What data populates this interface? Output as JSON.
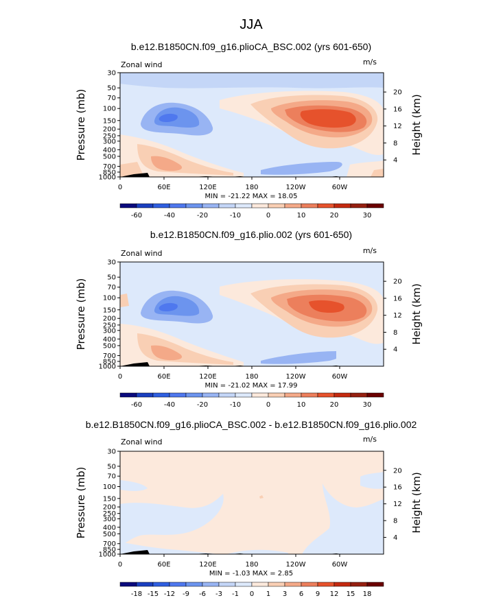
{
  "figure_title": "JJA",
  "colors": {
    "diverging_palette": [
      "#0a0a7d",
      "#1a3fbf",
      "#2f5fe0",
      "#4f78ee",
      "#6c94ee",
      "#98b4f3",
      "#c4d6f7",
      "#dde9fb",
      "#fce9dc",
      "#f9cfb4",
      "#f4a988",
      "#ec7f5c",
      "#e6522c",
      "#c42a10",
      "#952010",
      "#6b0000"
    ],
    "land": "#000000"
  },
  "chart_data": [
    {
      "type": "heatmap",
      "title": "b.e12.B1850CN.f09_g16.plioCA_BSC.002 (yrs 601-650)",
      "field_label": "Zonal wind",
      "units": "m/s",
      "ylabel": "Pressure (mb)",
      "ylabel_right": "Height (km)",
      "x_ticks": [
        "0",
        "60E",
        "120E",
        "180",
        "120W",
        "60W"
      ],
      "x_range": [
        0,
        360
      ],
      "y_ticks": [
        "30",
        "50",
        "70",
        "100",
        "150",
        "200",
        "250",
        "300",
        "400",
        "500",
        "700",
        "850",
        "1000"
      ],
      "y_range_mb": [
        1000,
        30
      ],
      "height_ticks": [
        "20",
        "16",
        "12",
        "8",
        "4"
      ],
      "min_max_text": "MIN = -21.22   MAX =  18.05",
      "min": -21.22,
      "max": 18.05,
      "colorbar_labels": [
        "-60",
        "-40",
        "-20",
        "-10",
        "0",
        "10",
        "20",
        "30"
      ],
      "level_step": 5
    },
    {
      "type": "heatmap",
      "title": "b.e12.B1850CN.f09_g16.plio.002 (yrs 601-650)",
      "field_label": "Zonal wind",
      "units": "m/s",
      "ylabel": "Pressure (mb)",
      "ylabel_right": "Height (km)",
      "x_ticks": [
        "0",
        "60E",
        "120E",
        "180",
        "120W",
        "60W"
      ],
      "x_range": [
        0,
        360
      ],
      "y_ticks": [
        "30",
        "50",
        "70",
        "100",
        "150",
        "200",
        "250",
        "300",
        "400",
        "500",
        "700",
        "850",
        "1000"
      ],
      "y_range_mb": [
        1000,
        30
      ],
      "height_ticks": [
        "20",
        "16",
        "12",
        "8",
        "4"
      ],
      "min_max_text": "MIN = -21.02   MAX =  17.99",
      "min": -21.02,
      "max": 17.99,
      "colorbar_labels": [
        "-60",
        "-40",
        "-20",
        "-10",
        "0",
        "10",
        "20",
        "30"
      ],
      "level_step": 5
    },
    {
      "type": "heatmap",
      "title": "b.e12.B1850CN.f09_g16.plioCA_BSC.002 - b.e12.B1850CN.f09_g16.plio.002",
      "field_label": "Zonal wind",
      "units": "m/s",
      "ylabel": "Pressure (mb)",
      "ylabel_right": "Height (km)",
      "x_ticks": [
        "0",
        "60E",
        "120E",
        "180",
        "120W",
        "60W"
      ],
      "x_range": [
        0,
        360
      ],
      "y_ticks": [
        "30",
        "50",
        "70",
        "100",
        "150",
        "200",
        "250",
        "300",
        "400",
        "500",
        "700",
        "850",
        "1000"
      ],
      "y_range_mb": [
        1000,
        30
      ],
      "height_ticks": [
        "20",
        "16",
        "12",
        "8",
        "4"
      ],
      "min_max_text": "MIN = -1.03   MAX =  2.85",
      "min": -1.03,
      "max": 2.85,
      "colorbar_labels": [
        "-18",
        "-15",
        "-12",
        "-9",
        "-6",
        "-3",
        "-1",
        "0",
        "1",
        "3",
        "6",
        "9",
        "12",
        "15",
        "18"
      ],
      "level_step": 1
    }
  ]
}
